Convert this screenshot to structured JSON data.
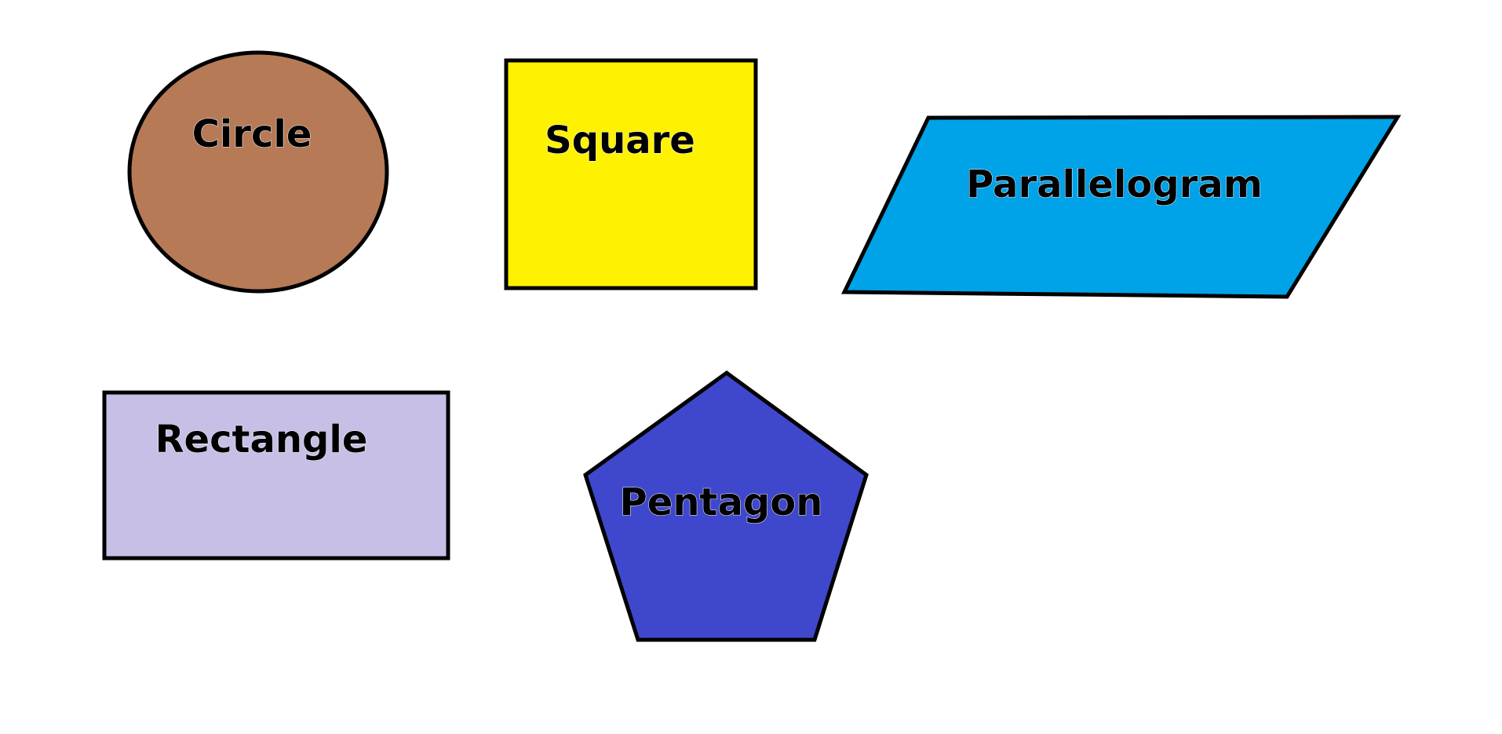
{
  "shapes": {
    "circle": {
      "label": "Circle",
      "color": "#B67A57"
    },
    "square": {
      "label": "Square",
      "color": "#FFF200"
    },
    "parallelogram": {
      "label": "Parallelogram",
      "color": "#00A2E8"
    },
    "rectangle": {
      "label": "Rectangle",
      "color": "#C8BFE7"
    },
    "pentagon": {
      "label": "Pentagon",
      "color": "#3F48CC"
    }
  }
}
